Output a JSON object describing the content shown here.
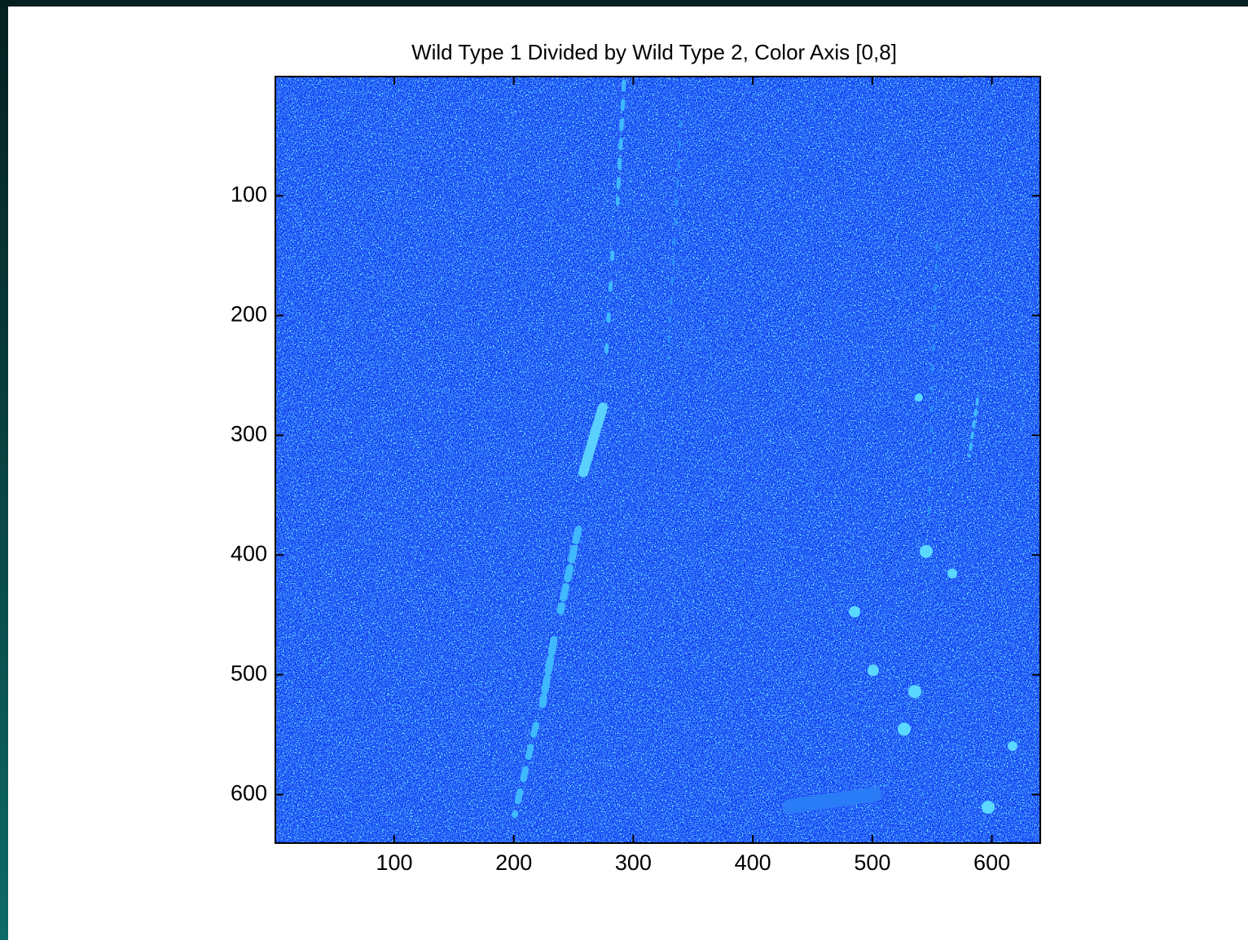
{
  "chart_data": {
    "type": "heatmap",
    "title": "Wild Type 1 Divided by Wild Type 2, Color Axis [0,8]",
    "xlim": [
      0.5,
      640.5
    ],
    "ylim": [
      0.5,
      640.5
    ],
    "y_reversed": true,
    "xticks": [
      100,
      200,
      300,
      400,
      500,
      600
    ],
    "yticks": [
      100,
      200,
      300,
      400,
      500,
      600
    ]
  }
}
